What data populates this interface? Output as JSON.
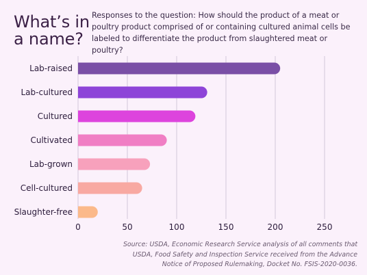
{
  "header": {
    "title": "What’s in a name?",
    "subtitle": "Responses to the question: How should the product of a meat or poultry product comprised of or containing cultured animal cells be labeled to differentiate the product from slaughtered meat or poultry?"
  },
  "footer": {
    "source": "Source: USDA, Economic Research Service analysis of all comments that USDA, Food Safety and Inspection Service received from the Advance Notice of Proposed Rulemaking, Docket No. FSIS-2020-0036."
  },
  "chart_data": {
    "type": "bar",
    "orientation": "horizontal",
    "categories": [
      "Lab-raised",
      "Lab-cultured",
      "Cultured",
      "Cultivated",
      "Lab-grown",
      "Cell-cultured",
      "Slaughter-free"
    ],
    "values": [
      205,
      131,
      119,
      90,
      73,
      65,
      20
    ],
    "colors": [
      "#7a4fa6",
      "#8e44d8",
      "#dd44dd",
      "#f07ec4",
      "#f7a1bc",
      "#f8a9a2",
      "#fbb98a"
    ],
    "xlim": [
      0,
      250
    ],
    "xticks": [
      "0",
      "50",
      "100",
      "150",
      "200",
      "250"
    ],
    "grid": true
  }
}
